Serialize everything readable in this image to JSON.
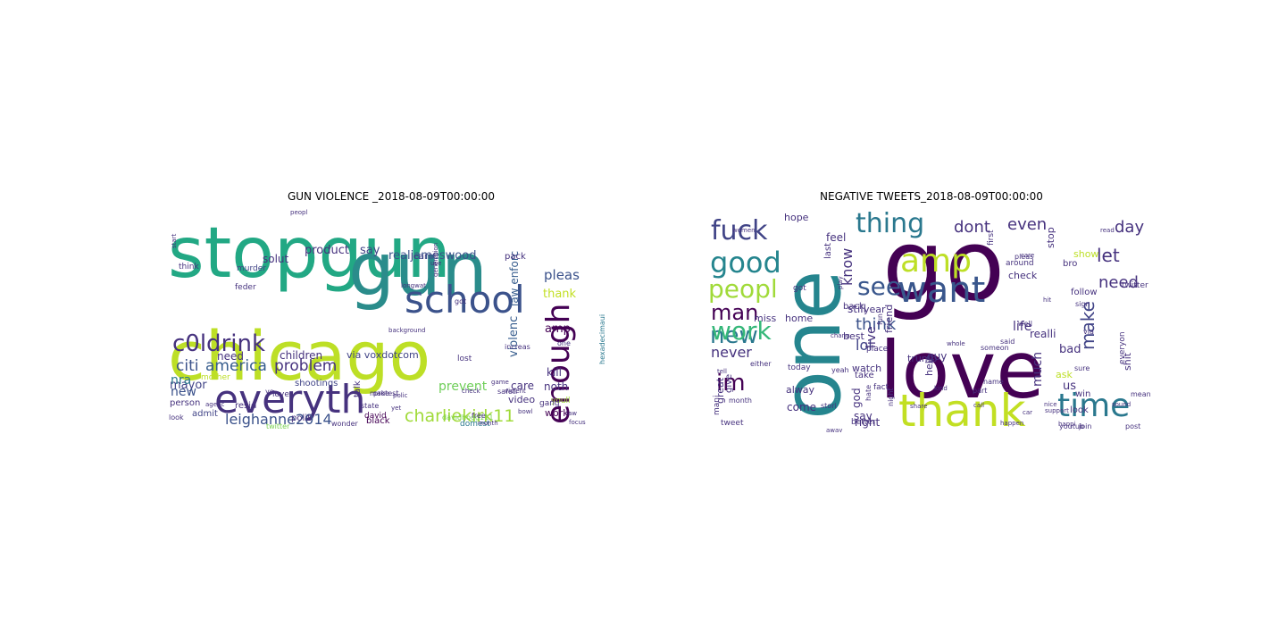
{
  "panels": [
    {
      "title": "GUN VIOLENCE _2018-08-09T00:00:00",
      "words": [
        {
          "t": "stopgun",
          "c": "#22a884"
        },
        {
          "t": "gun",
          "c": "#2a8c8b"
        },
        {
          "t": "chicago",
          "c": "#bddf26"
        },
        {
          "t": "everyth",
          "c": "#46327e"
        },
        {
          "t": "school",
          "c": "#3b528b"
        },
        {
          "t": "enough",
          "c": "#440154"
        },
        {
          "t": "c0ldrink",
          "c": "#46327e"
        },
        {
          "t": "citi",
          "c": "#3b528b"
        },
        {
          "t": "america",
          "c": "#365c8d"
        },
        {
          "t": "problem",
          "c": "#46327e"
        },
        {
          "t": "leighanne2014",
          "c": "#3b528b"
        },
        {
          "t": "charliekirk11",
          "c": "#a0da39"
        },
        {
          "t": "realjameswood",
          "c": "#3b528b"
        },
        {
          "t": "product",
          "c": "#46327e"
        },
        {
          "t": "say",
          "c": "#414487"
        },
        {
          "t": "pleas",
          "c": "#3b528b"
        },
        {
          "t": "thank",
          "c": "#c2df23"
        },
        {
          "t": "law enforc",
          "c": "#365c8d"
        },
        {
          "t": "violenc",
          "c": "#365c8d"
        },
        {
          "t": "mayor",
          "c": "#414487"
        },
        {
          "t": "solut",
          "c": "#46327e"
        },
        {
          "t": "need",
          "c": "#46327e"
        },
        {
          "t": "via voxdotcom",
          "c": "#414487"
        },
        {
          "t": "children",
          "c": "#46327e"
        },
        {
          "t": "kill",
          "c": "#46327e"
        },
        {
          "t": "amp",
          "c": "#440154"
        },
        {
          "t": "noth",
          "c": "#46327e"
        },
        {
          "t": "nra",
          "c": "#2a788e"
        },
        {
          "t": "new",
          "c": "#3b528b"
        },
        {
          "t": "prevent",
          "c": "#6ece58"
        },
        {
          "t": "care",
          "c": "#46327e"
        },
        {
          "t": "work",
          "c": "#440154"
        },
        {
          "t": "video",
          "c": "#46327e"
        },
        {
          "t": "person",
          "c": "#46327e"
        },
        {
          "t": "shootings",
          "c": "#414487"
        },
        {
          "t": "talk",
          "c": "#46327e"
        },
        {
          "t": "resid",
          "c": "#46327e"
        },
        {
          "t": "admit",
          "c": "#414487"
        },
        {
          "t": "polit",
          "c": "#46327e"
        },
        {
          "t": "black",
          "c": "#440154"
        },
        {
          "t": "lost",
          "c": "#46327e"
        },
        {
          "t": "learn",
          "c": "#414487"
        },
        {
          "t": "pack",
          "c": "#46327e"
        },
        {
          "t": "think",
          "c": "#46327e"
        },
        {
          "t": "murder",
          "c": "#414487"
        },
        {
          "t": "feder",
          "c": "#46327e"
        },
        {
          "t": "love",
          "c": "#46327e"
        },
        {
          "t": "david",
          "c": "#440154"
        },
        {
          "t": "domest",
          "c": "#2a788e"
        },
        {
          "t": "youll",
          "c": "#a0da39"
        },
        {
          "t": "gang",
          "c": "#46327e"
        },
        {
          "t": "safeti",
          "c": "#46327e"
        },
        {
          "t": "increas",
          "c": "#46327e"
        },
        {
          "t": "got",
          "c": "#46327e"
        },
        {
          "t": "protest",
          "c": "#46327e"
        },
        {
          "t": "davidhogg111",
          "c": "#7ad151"
        },
        {
          "t": "hexadecimaui",
          "c": "#2a788e"
        },
        {
          "t": "one",
          "c": "#46327e"
        },
        {
          "t": "ye",
          "c": "#46327e"
        },
        {
          "t": "state",
          "c": "#46327e"
        },
        {
          "t": "make",
          "c": "#46327e"
        },
        {
          "t": "mother",
          "c": "#bddf26"
        },
        {
          "t": "look",
          "c": "#46327e"
        },
        {
          "t": "agenc",
          "c": "#46327e"
        },
        {
          "t": "wonder",
          "c": "#46327e"
        },
        {
          "t": "free",
          "c": "#46327e"
        },
        {
          "t": "law",
          "c": "#46327e"
        },
        {
          "t": "polic",
          "c": "#46327e"
        },
        {
          "t": "check",
          "c": "#46327e"
        },
        {
          "t": "violent",
          "c": "#46327e"
        },
        {
          "t": "month",
          "c": "#46327e"
        },
        {
          "t": "twitter",
          "c": "#7ad151"
        },
        {
          "t": "game",
          "c": "#46327e"
        },
        {
          "t": "bowl",
          "c": "#46327e"
        },
        {
          "t": "focus",
          "c": "#46327e"
        },
        {
          "t": "start",
          "c": "#46327e"
        },
        {
          "t": "use",
          "c": "#46327e"
        },
        {
          "t": "longwat",
          "c": "#46327e"
        },
        {
          "t": "generation",
          "c": "#46327e"
        },
        {
          "t": "background",
          "c": "#46327e"
        },
        {
          "t": "peopl",
          "c": "#46327e"
        },
        {
          "t": "yet",
          "c": "#46327e"
        }
      ]
    },
    {
      "title": "NEGATIVE TWEETS_2018-08-09T00:00:00",
      "words": [
        {
          "t": "go",
          "c": "#440154"
        },
        {
          "t": "one",
          "c": "#25858e"
        },
        {
          "t": "love",
          "c": "#440154"
        },
        {
          "t": "thank",
          "c": "#c2df23"
        },
        {
          "t": "want",
          "c": "#39568c"
        },
        {
          "t": "time",
          "c": "#2a788e"
        },
        {
          "t": "amp",
          "c": "#bddf26"
        },
        {
          "t": "fuck",
          "c": "#414487"
        },
        {
          "t": "thing",
          "c": "#2a788e"
        },
        {
          "t": "good",
          "c": "#25858e"
        },
        {
          "t": "see",
          "c": "#39568c"
        },
        {
          "t": "peopl",
          "c": "#a0da39"
        },
        {
          "t": "new",
          "c": "#2a788e"
        },
        {
          "t": "work",
          "c": "#35b779"
        },
        {
          "t": "im",
          "c": "#440154"
        },
        {
          "t": "man",
          "c": "#440154"
        },
        {
          "t": "dont",
          "c": "#46327e"
        },
        {
          "t": "even",
          "c": "#46327e"
        },
        {
          "t": "day",
          "c": "#46327e"
        },
        {
          "t": "let",
          "c": "#46327e"
        },
        {
          "t": "need",
          "c": "#46327e"
        },
        {
          "t": "make",
          "c": "#414487"
        },
        {
          "t": "think",
          "c": "#3b528b"
        },
        {
          "t": "know",
          "c": "#46327e"
        },
        {
          "t": "lol",
          "c": "#414487"
        },
        {
          "t": "life",
          "c": "#46327e"
        },
        {
          "t": "realli",
          "c": "#46327e"
        },
        {
          "t": "never",
          "c": "#46327e"
        },
        {
          "t": "live",
          "c": "#46327e"
        },
        {
          "t": "much",
          "c": "#46327e"
        },
        {
          "t": "god",
          "c": "#46327e"
        },
        {
          "t": "say",
          "c": "#46327e"
        },
        {
          "t": "right",
          "c": "#46327e"
        },
        {
          "t": "come",
          "c": "#46327e"
        },
        {
          "t": "hope",
          "c": "#46327e"
        },
        {
          "t": "feel",
          "c": "#46327e"
        },
        {
          "t": "still",
          "c": "#46327e"
        },
        {
          "t": "year",
          "c": "#46327e"
        },
        {
          "t": "home",
          "c": "#46327e"
        },
        {
          "t": "miss",
          "c": "#46327e"
        },
        {
          "t": "best",
          "c": "#46327e"
        },
        {
          "t": "watch",
          "c": "#46327e"
        },
        {
          "t": "trump",
          "c": "#46327e"
        },
        {
          "t": "friend",
          "c": "#46327e"
        },
        {
          "t": "help",
          "c": "#46327e"
        },
        {
          "t": "bad",
          "c": "#46327e"
        },
        {
          "t": "us",
          "c": "#46327e"
        },
        {
          "t": "ask",
          "c": "#bddf26"
        },
        {
          "t": "stop",
          "c": "#46327e"
        },
        {
          "t": "show",
          "c": "#bddf26"
        },
        {
          "t": "check",
          "c": "#46327e"
        },
        {
          "t": "guy",
          "c": "#46327e"
        },
        {
          "t": "bro",
          "c": "#46327e"
        },
        {
          "t": "great",
          "c": "#46327e"
        },
        {
          "t": "give",
          "c": "#46327e"
        },
        {
          "t": "mani",
          "c": "#46327e"
        },
        {
          "t": "alway",
          "c": "#46327e"
        },
        {
          "t": "take",
          "c": "#46327e"
        },
        {
          "t": "back",
          "c": "#46327e"
        },
        {
          "t": "look",
          "c": "#46327e"
        },
        {
          "t": "win",
          "c": "#46327e"
        },
        {
          "t": "shit",
          "c": "#46327e"
        },
        {
          "t": "everyon",
          "c": "#46327e"
        },
        {
          "t": "follow",
          "c": "#46327e"
        },
        {
          "t": "last",
          "c": "#46327e"
        },
        {
          "t": "better",
          "c": "#46327e"
        },
        {
          "t": "place",
          "c": "#46327e"
        },
        {
          "t": "tweet",
          "c": "#46327e"
        },
        {
          "t": "month",
          "c": "#46327e"
        },
        {
          "t": "got",
          "c": "#46327e"
        },
        {
          "t": "today",
          "c": "#46327e"
        },
        {
          "t": "first",
          "c": "#46327e"
        },
        {
          "t": "twitter",
          "c": "#46327e"
        },
        {
          "t": "around",
          "c": "#46327e"
        },
        {
          "t": "someon",
          "c": "#46327e"
        },
        {
          "t": "name",
          "c": "#46327e"
        },
        {
          "t": "part",
          "c": "#46327e"
        },
        {
          "t": "sure",
          "c": "#46327e"
        },
        {
          "t": "join",
          "c": "#46327e"
        },
        {
          "t": "post",
          "c": "#46327e"
        },
        {
          "t": "youtub",
          "c": "#46327e"
        },
        {
          "t": "via",
          "c": "#46327e"
        },
        {
          "t": "fact",
          "c": "#46327e"
        },
        {
          "t": "either",
          "c": "#46327e"
        },
        {
          "t": "hate",
          "c": "#46327e"
        },
        {
          "t": "night",
          "c": "#46327e"
        },
        {
          "t": "yeah",
          "c": "#46327e"
        },
        {
          "t": "pleas",
          "c": "#46327e"
        },
        {
          "t": "care",
          "c": "#46327e"
        },
        {
          "t": "well",
          "c": "#46327e"
        },
        {
          "t": "said",
          "c": "#46327e"
        },
        {
          "t": "read",
          "c": "#46327e"
        },
        {
          "t": "sign",
          "c": "#46327e"
        },
        {
          "t": "mean",
          "c": "#46327e"
        },
        {
          "t": "nice",
          "c": "#46327e"
        },
        {
          "t": "tell",
          "c": "#46327e"
        },
        {
          "t": "away",
          "c": "#46327e"
        },
        {
          "t": "happen",
          "c": "#46327e"
        },
        {
          "t": "call",
          "c": "#46327e"
        },
        {
          "t": "share",
          "c": "#46327e"
        },
        {
          "t": "stori",
          "c": "#46327e"
        },
        {
          "t": "chang",
          "c": "#46327e"
        },
        {
          "t": "whole",
          "c": "#46327e"
        },
        {
          "t": "women",
          "c": "#46327e"
        },
        {
          "t": "sound",
          "c": "#46327e"
        },
        {
          "t": "car",
          "c": "#46327e"
        },
        {
          "t": "kind",
          "c": "#46327e"
        },
        {
          "t": "happi",
          "c": "#46327e"
        },
        {
          "t": "support",
          "c": "#46327e"
        },
        {
          "t": "play",
          "c": "#46327e"
        },
        {
          "t": "fun",
          "c": "#46327e"
        },
        {
          "t": "hit",
          "c": "#46327e"
        },
        {
          "t": "eye",
          "c": "#46327e"
        },
        {
          "t": "must",
          "c": "#46327e"
        },
        {
          "t": "final",
          "c": "#46327e"
        },
        {
          "t": "don",
          "c": "#46327e"
        },
        {
          "t": "ill",
          "c": "#46327e"
        },
        {
          "t": "video",
          "c": "#46327e"
        }
      ]
    }
  ]
}
